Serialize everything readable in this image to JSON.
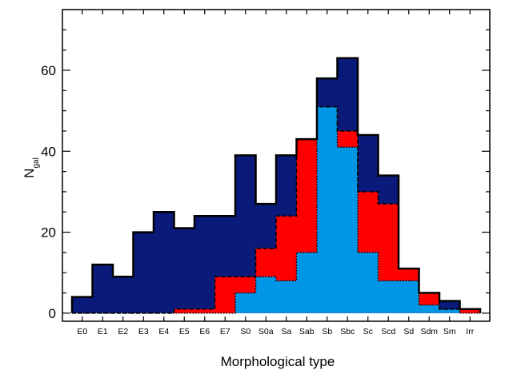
{
  "chart_data": {
    "type": "bar",
    "title": "",
    "xlabel": "Morphological type",
    "ylabel": "N",
    "ylabel_subscript": "gal",
    "ylim": [
      -2,
      75
    ],
    "yticks": [
      0,
      20,
      40,
      60
    ],
    "grid": false,
    "legend": "none",
    "categories": [
      "E0",
      "E1",
      "E2",
      "E3",
      "E4",
      "E5",
      "E6",
      "E7",
      "S0",
      "S0a",
      "Sa",
      "Sab",
      "Sb",
      "Sbc",
      "Sc",
      "Scd",
      "Sd",
      "Sdm",
      "Sm",
      "Irr"
    ],
    "series": [
      {
        "values": [
          4,
          12,
          9,
          20,
          25,
          21,
          24,
          24,
          39,
          27,
          39,
          43,
          58,
          63,
          44,
          34,
          11,
          5,
          3,
          1
        ],
        "color": "#0a1a7a",
        "line": "solid"
      },
      {
        "values": [
          0,
          0,
          0,
          0,
          0,
          1,
          1,
          9,
          9,
          16,
          24,
          43,
          51,
          45,
          30,
          27,
          11,
          5,
          1,
          1
        ],
        "color": "#ff0000",
        "line": "dashed"
      },
      {
        "values": [
          0,
          0,
          0,
          0,
          0,
          0,
          0,
          0,
          5,
          9,
          8,
          15,
          51,
          41,
          15,
          8,
          8,
          2,
          1,
          0
        ],
        "color": "#0096e6",
        "line": "dotted"
      }
    ]
  }
}
